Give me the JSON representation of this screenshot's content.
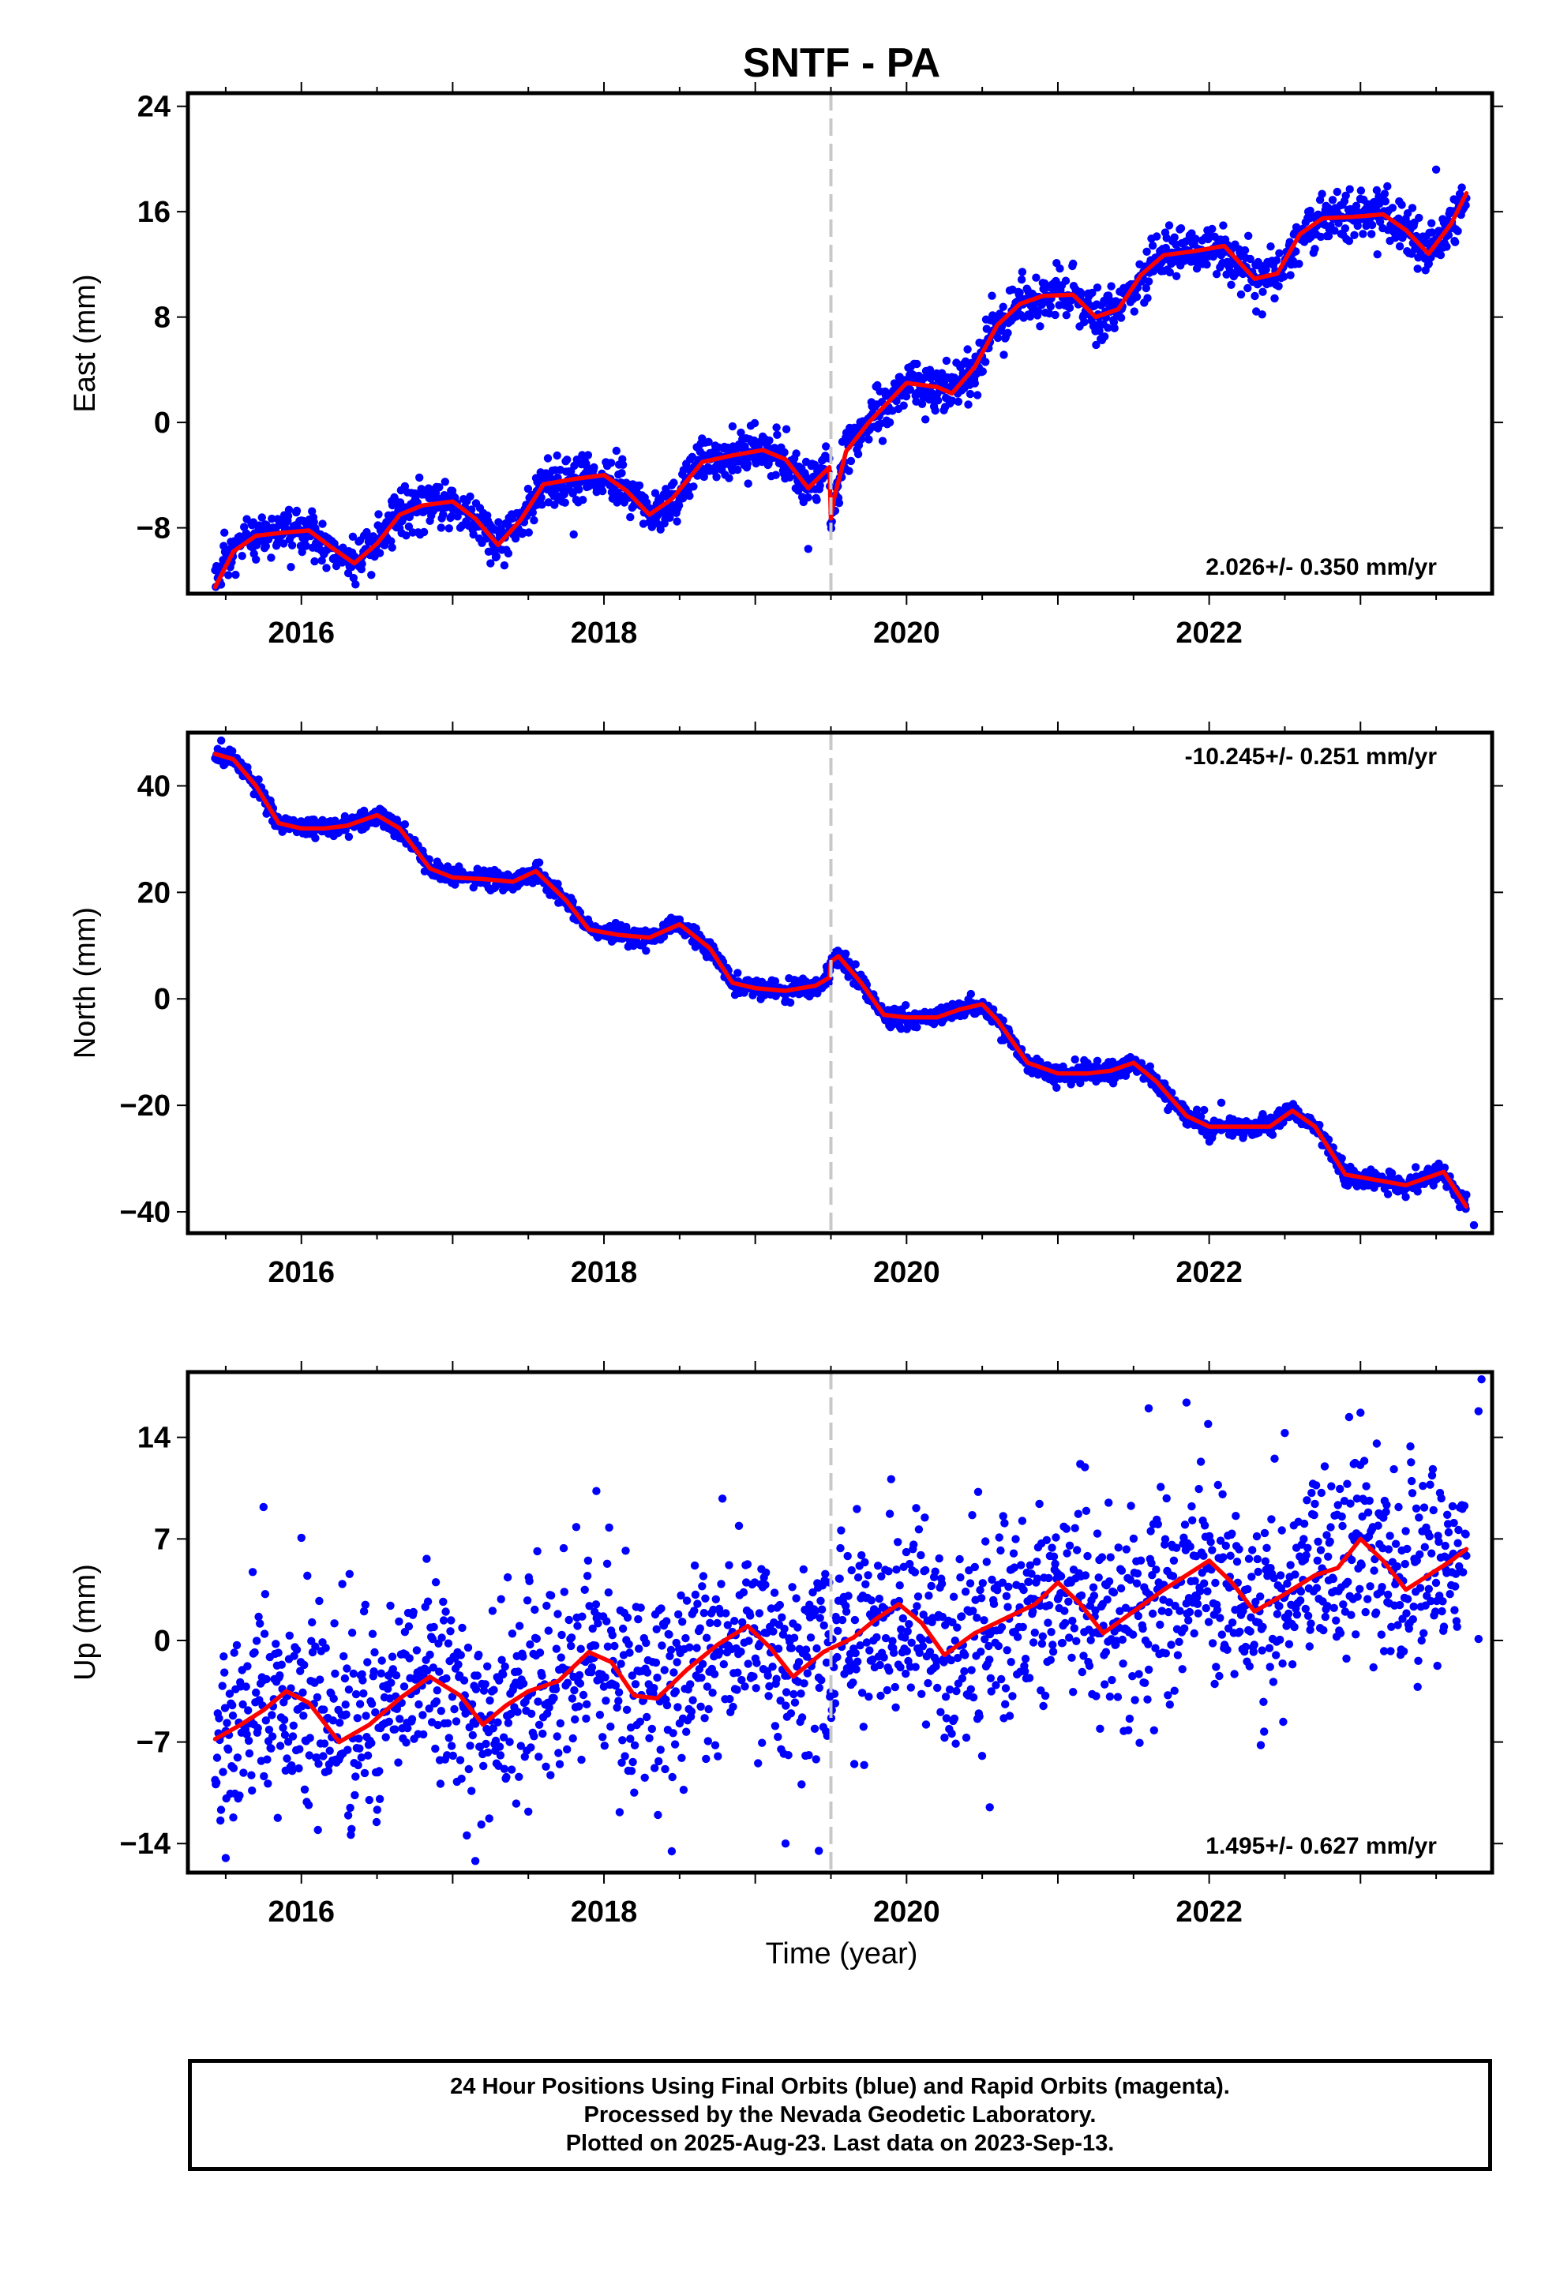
{
  "title": "SNTF - PA",
  "xlabel": "Time (year)",
  "caption": [
    "24 Hour Positions Using Final Orbits (blue) and Rapid Orbits (magenta).",
    "Processed by the Nevada Geodetic Laboratory.",
    "Plotted on 2025-Aug-23. Last data on 2023-Sep-13."
  ],
  "colors": {
    "data": "#0000ff",
    "model": "#ff0000",
    "break_line": "#c8c8c8"
  },
  "chart_data": [
    {
      "type": "scatter",
      "component": "East",
      "ylabel": "East (mm)",
      "xlim": [
        2015.25,
        2023.87
      ],
      "ylim": [
        -13,
        25
      ],
      "xticks": [
        2016,
        2018,
        2020,
        2022
      ],
      "xtick_labels": [
        "2016",
        "2018",
        "2020",
        "2022"
      ],
      "yticks": [
        -8,
        0,
        8,
        16,
        24
      ],
      "ytick_labels": [
        "−8",
        "0",
        "8",
        "16",
        "24"
      ],
      "rate": "2.026+/- 0.350 mm/yr",
      "rate_position": "bottom-right",
      "equipment_change": 2019.5,
      "scatter_sd": 0.9,
      "model": {
        "x": [
          2015.43,
          2015.55,
          2015.7,
          2015.85,
          2016.05,
          2016.2,
          2016.35,
          2016.5,
          2016.65,
          2016.8,
          2017.0,
          2017.15,
          2017.3,
          2017.45,
          2017.6,
          2017.8,
          2018.0,
          2018.15,
          2018.3,
          2018.45,
          2018.65,
          2018.85,
          2019.05,
          2019.2,
          2019.35,
          2019.49,
          2019.5,
          2019.52,
          2019.6,
          2019.75,
          2019.9,
          2020.0,
          2020.2,
          2020.3,
          2020.45,
          2020.6,
          2020.75,
          2020.9,
          2021.1,
          2021.25,
          2021.4,
          2021.55,
          2021.7,
          2021.9,
          2022.1,
          2022.3,
          2022.45,
          2022.6,
          2022.75,
          2022.95,
          2023.15,
          2023.3,
          2023.45,
          2023.6,
          2023.7
        ],
        "y": [
          -12.5,
          -9.8,
          -8.6,
          -8.4,
          -8.2,
          -9.5,
          -10.7,
          -9.2,
          -7.0,
          -6.3,
          -6.0,
          -7.3,
          -9.3,
          -7.4,
          -4.7,
          -4.3,
          -4.0,
          -5.2,
          -7.0,
          -5.8,
          -3.0,
          -2.5,
          -2.1,
          -2.8,
          -5.0,
          -3.4,
          -7.3,
          -5.8,
          -2.2,
          0.0,
          1.8,
          3.0,
          2.7,
          2.2,
          4.2,
          7.4,
          9.0,
          9.6,
          9.7,
          8.0,
          8.6,
          11.2,
          12.7,
          13.0,
          13.4,
          10.9,
          11.3,
          14.3,
          15.5,
          15.6,
          15.8,
          14.6,
          12.8,
          15.1,
          17.4
        ]
      },
      "outliers": [
        [
          2016.6,
          -9.5
        ],
        [
          2016.95,
          -5.8
        ],
        [
          2017.25,
          -10.7
        ],
        [
          2017.8,
          -8.5
        ],
        [
          2018.85,
          -0.3
        ],
        [
          2019.35,
          -9.6
        ],
        [
          2022.35,
          8.2
        ],
        [
          2023.5,
          19.2
        ]
      ]
    },
    {
      "type": "scatter",
      "component": "North",
      "ylabel": "North (mm)",
      "xlim": [
        2015.25,
        2023.87
      ],
      "ylim": [
        -44,
        50
      ],
      "xticks": [
        2016,
        2018,
        2020,
        2022
      ],
      "xtick_labels": [
        "2016",
        "2018",
        "2020",
        "2022"
      ],
      "yticks": [
        -40,
        -20,
        0,
        20,
        40
      ],
      "ytick_labels": [
        "−40",
        "−20",
        "0",
        "20",
        "40"
      ],
      "rate": "-10.245+/- 0.251 mm/yr",
      "rate_position": "top-right",
      "equipment_change": 2019.5,
      "scatter_sd": 0.9,
      "model": {
        "x": [
          2015.43,
          2015.55,
          2015.7,
          2015.85,
          2016.0,
          2016.15,
          2016.3,
          2016.5,
          2016.65,
          2016.85,
          2017.0,
          2017.2,
          2017.4,
          2017.55,
          2017.75,
          2017.9,
          2018.1,
          2018.3,
          2018.5,
          2018.7,
          2018.85,
          2019.0,
          2019.2,
          2019.4,
          2019.49,
          2019.5,
          2019.55,
          2019.7,
          2019.85,
          2020.0,
          2020.2,
          2020.35,
          2020.5,
          2020.6,
          2020.8,
          2021.0,
          2021.2,
          2021.35,
          2021.5,
          2021.65,
          2021.85,
          2022.0,
          2022.2,
          2022.4,
          2022.55,
          2022.7,
          2022.9,
          2023.1,
          2023.3,
          2023.45,
          2023.55,
          2023.7
        ],
        "y": [
          46.0,
          45.0,
          40.0,
          33.0,
          32.0,
          32.0,
          32.5,
          34.5,
          32.0,
          24.5,
          22.8,
          22.5,
          22.0,
          24.0,
          18.5,
          13.0,
          12.0,
          11.5,
          14.0,
          9.5,
          3.0,
          2.0,
          1.5,
          2.5,
          4.0,
          7.0,
          8.0,
          3.0,
          -3.0,
          -3.5,
          -3.5,
          -2.0,
          -1.0,
          -4.0,
          -12.0,
          -14.0,
          -14.0,
          -13.5,
          -12.0,
          -15.5,
          -22.0,
          -24.0,
          -24.0,
          -24.0,
          -21.0,
          -24.0,
          -33.0,
          -34.0,
          -35.0,
          -33.5,
          -32.5,
          -39.0
        ]
      },
      "outliers": [
        [
          2015.47,
          48.5
        ],
        [
          2022.08,
          -19.5
        ],
        [
          2023.75,
          -42.5
        ]
      ]
    },
    {
      "type": "scatter",
      "component": "Up",
      "ylabel": "Up (mm)",
      "xlim": [
        2015.25,
        2023.87
      ],
      "ylim": [
        -16,
        18.5
      ],
      "xticks": [
        2016,
        2018,
        2020,
        2022
      ],
      "xtick_labels": [
        "2016",
        "2018",
        "2020",
        "2022"
      ],
      "yticks": [
        -14,
        -7,
        0,
        7,
        14
      ],
      "ytick_labels": [
        "−14",
        "−7",
        "0",
        "7",
        "14"
      ],
      "rate": "1.495+/- 0.627 mm/yr",
      "rate_position": "bottom-right",
      "equipment_change": 2019.5,
      "scatter_sd": 3.4,
      "model": {
        "x": [
          2015.43,
          2015.6,
          2015.75,
          2015.9,
          2016.05,
          2016.25,
          2016.45,
          2016.65,
          2016.85,
          2017.05,
          2017.2,
          2017.35,
          2017.5,
          2017.7,
          2017.9,
          2018.05,
          2018.2,
          2018.35,
          2018.55,
          2018.75,
          2018.95,
          2019.1,
          2019.25,
          2019.45,
          2019.65,
          2019.8,
          2019.95,
          2020.1,
          2020.25,
          2020.45,
          2020.65,
          2020.85,
          2021.0,
          2021.15,
          2021.3,
          2021.5,
          2021.7,
          2021.85,
          2022.0,
          2022.15,
          2022.3,
          2022.5,
          2022.7,
          2022.85,
          2023.0,
          2023.15,
          2023.3,
          2023.45,
          2023.6,
          2023.7
        ],
        "y": [
          -6.8,
          -5.8,
          -4.8,
          -3.5,
          -4.3,
          -7.0,
          -5.8,
          -4.0,
          -2.5,
          -3.8,
          -5.8,
          -4.5,
          -3.5,
          -2.8,
          -0.8,
          -1.5,
          -3.8,
          -4.0,
          -2.0,
          -0.3,
          1.0,
          -0.5,
          -2.5,
          -0.8,
          0.2,
          1.5,
          2.5,
          1.2,
          -1.0,
          0.5,
          1.5,
          2.5,
          4.0,
          2.5,
          0.5,
          2.0,
          3.5,
          4.5,
          5.5,
          4.0,
          2.0,
          3.2,
          4.5,
          5.0,
          7.0,
          5.5,
          3.5,
          4.5,
          5.5,
          6.3
        ]
      },
      "outliers": [
        [
          2015.5,
          -15.0
        ],
        [
          2015.55,
          -12.2
        ],
        [
          2015.75,
          9.2
        ],
        [
          2017.15,
          -15.2
        ],
        [
          2017.5,
          -11.8
        ],
        [
          2017.95,
          10.3
        ],
        [
          2019.2,
          -14.0
        ],
        [
          2019.42,
          -14.5
        ],
        [
          2020.55,
          -11.5
        ],
        [
          2021.6,
          16.0
        ],
        [
          2021.85,
          16.4
        ],
        [
          2022.5,
          14.3
        ],
        [
          2023.0,
          15.7
        ],
        [
          2023.8,
          18.0
        ],
        [
          2023.78,
          15.8
        ],
        [
          2023.78,
          0.1
        ]
      ]
    }
  ]
}
